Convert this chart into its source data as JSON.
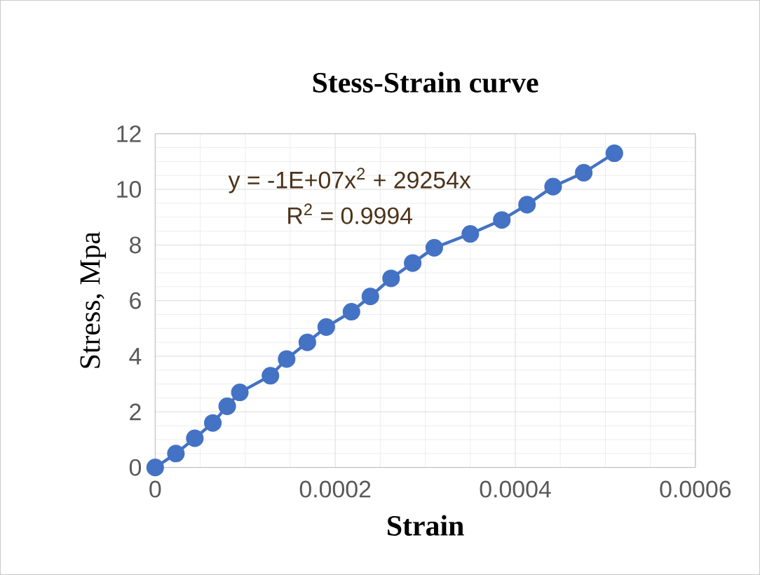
{
  "chart_data": {
    "type": "line",
    "title": "Stess-Strain curve",
    "xlabel": "Strain",
    "ylabel": "Stress,  Mpa",
    "x": [
      0,
      2.3e-05,
      4.4e-05,
      6.4e-05,
      8e-05,
      9.4e-05,
      0.000128,
      0.000146,
      0.000169,
      0.00019,
      0.000218,
      0.000239,
      0.000262,
      0.000286,
      0.00031,
      0.00035,
      0.000385,
      0.000413,
      0.000442,
      0.000476,
      0.00051
    ],
    "series": [
      {
        "color": "#4472c4",
        "values": [
          0,
          0.5,
          1.05,
          1.6,
          2.2,
          2.7,
          3.3,
          3.9,
          4.5,
          5.05,
          5.6,
          6.15,
          6.8,
          7.35,
          7.9,
          8.4,
          8.9,
          9.45,
          10.1,
          10.6,
          11.3
        ]
      }
    ],
    "xlim": [
      0,
      0.0006
    ],
    "xticks": [
      0,
      0.0002,
      0.0004,
      0.0006
    ],
    "ylim": [
      0,
      12
    ],
    "yticks": [
      0,
      2,
      4,
      6,
      8,
      10,
      12
    ],
    "annotations": [
      "y = -1E+07x$^{2}$ + 29254x",
      "R$^{2}$ = 0.9994"
    ],
    "grid": true,
    "marker": "circle",
    "line_style": "solid"
  }
}
